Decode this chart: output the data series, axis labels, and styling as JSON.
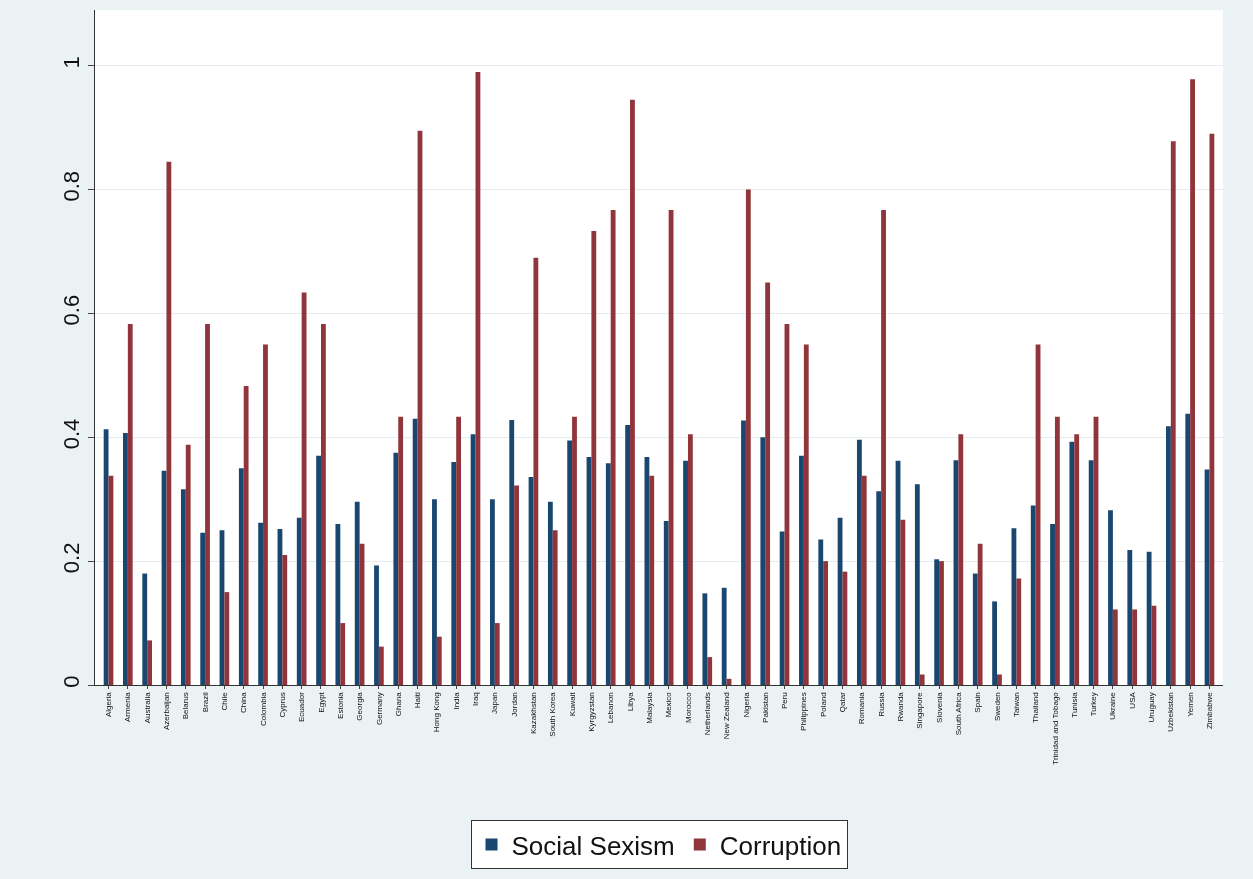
{
  "chart_data": {
    "type": "bar",
    "categories": [
      "Algeria",
      "Armenia",
      "Australia",
      "Azerbaijan",
      "Belarus",
      "Brazil",
      "Chile",
      "China",
      "Colombia",
      "Cyprus",
      "Ecuador",
      "Egypt",
      "Estonia",
      "Georgia",
      "Germany",
      "Ghana",
      "Haiti",
      "Hong Kong",
      "India",
      "Iraq",
      "Japan",
      "Jordan",
      "Kazakhstan",
      "South Korea",
      "Kuwait",
      "Kyrgyzstan",
      "Lebanon",
      "Libya",
      "Malaysia",
      "Mexico",
      "Morocco",
      "Netherlands",
      "New Zealand",
      "Nigeria",
      "Pakistan",
      "Peru",
      "Philippines",
      "Poland",
      "Qatar",
      "Romania",
      "Russia",
      "Rwanda",
      "Singapore",
      "Slovenia",
      "South Africa",
      "Spain",
      "Sweden",
      "Taiwan",
      "Thailand",
      "Trinidad and Tobago",
      "Tunisia",
      "Turkey",
      "Ukraine",
      "USA",
      "Uruguay",
      "Uzbekistan",
      "Yemen",
      "Zimbabwe"
    ],
    "series": [
      {
        "name": "Social Sexism",
        "color": "#1a476f",
        "values": [
          0.413,
          0.407,
          0.18,
          0.346,
          0.316,
          0.246,
          0.25,
          0.35,
          0.262,
          0.252,
          0.27,
          0.37,
          0.26,
          0.296,
          0.193,
          0.375,
          0.43,
          0.3,
          0.36,
          0.405,
          0.3,
          0.428,
          0.336,
          0.296,
          0.395,
          0.368,
          0.358,
          0.42,
          0.368,
          0.265,
          0.362,
          0.148,
          0.157,
          0.427,
          0.4,
          0.248,
          0.37,
          0.235,
          0.27,
          0.396,
          0.313,
          0.362,
          0.324,
          0.203,
          0.363,
          0.18,
          0.135,
          0.253,
          0.29,
          0.26,
          0.393,
          0.363,
          0.282,
          0.218,
          0.215,
          0.418,
          0.438,
          0.348
        ]
      },
      {
        "name": "Corruption",
        "color": "#90353b",
        "values": [
          0.338,
          0.583,
          0.072,
          0.845,
          0.388,
          0.583,
          0.15,
          0.483,
          0.55,
          0.21,
          0.634,
          0.583,
          0.1,
          0.228,
          0.062,
          0.433,
          0.895,
          0.078,
          0.433,
          0.99,
          0.1,
          0.322,
          0.69,
          0.25,
          0.433,
          0.733,
          0.767,
          0.945,
          0.338,
          0.767,
          0.405,
          0.045,
          0.01,
          0.8,
          0.65,
          0.583,
          0.55,
          0.2,
          0.183,
          0.338,
          0.767,
          0.267,
          0.017,
          0.2,
          0.405,
          0.228,
          0.017,
          0.172,
          0.55,
          0.433,
          0.405,
          0.433,
          0.122,
          0.122,
          0.128,
          0.878,
          0.978,
          0.89
        ]
      }
    ],
    "ylim": [
      0,
      1.09
    ],
    "yticks": [
      0,
      0.2,
      0.4,
      0.6,
      0.8,
      1
    ],
    "grid": "y",
    "legend": "bottom"
  }
}
